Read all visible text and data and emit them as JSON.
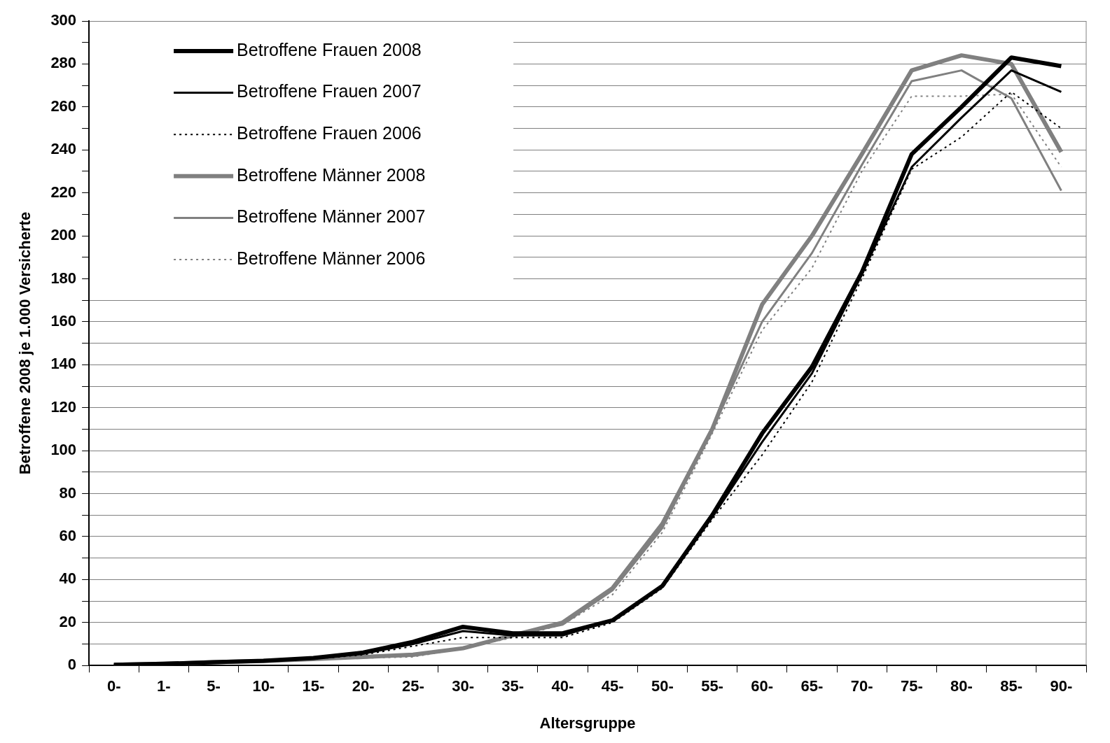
{
  "chart_data": {
    "type": "line",
    "xlabel": "Altersgruppe",
    "ylabel": "Betroffene 2008 je 1.000 Versicherte",
    "categories": [
      "0-",
      "1-",
      "5-",
      "10-",
      "15-",
      "20-",
      "25-",
      "30-",
      "35-",
      "40-",
      "45-",
      "50-",
      "55-",
      "60-",
      "65-",
      "70-",
      "75-",
      "80-",
      "85-",
      "90-"
    ],
    "ylim": [
      0,
      300
    ],
    "yticks": [
      0,
      {
        "value": 10,
        "label": null
      },
      20,
      {
        "value": 30,
        "label": null
      },
      40,
      {
        "value": 50,
        "label": null
      },
      60,
      {
        "value": 70,
        "label": null
      },
      80,
      {
        "value": 90,
        "label": null
      },
      100,
      {
        "value": 110,
        "label": null
      },
      120,
      {
        "value": 130,
        "label": null
      },
      140,
      {
        "value": 150,
        "label": null
      },
      160,
      {
        "value": 170,
        "label": null
      },
      180,
      {
        "value": 190,
        "label": null
      },
      200,
      {
        "value": 210,
        "label": null
      },
      220,
      {
        "value": 230,
        "label": null
      },
      240,
      {
        "value": 250,
        "label": null
      },
      260,
      {
        "value": 270,
        "label": null
      },
      280,
      {
        "value": 290,
        "label": null
      },
      300
    ],
    "grid": "y",
    "legend": "top left",
    "marker": "none",
    "series": [
      {
        "name": "Betroffene Frauen 2008",
        "color": "#000000",
        "line_style": "solid",
        "values": [
          0.3,
          0.8,
          1.5,
          2.2,
          3.5,
          6,
          11,
          18,
          15,
          15,
          21,
          37,
          70,
          108,
          139,
          183,
          238,
          260,
          283,
          279
        ]
      },
      {
        "name": "Betroffene Frauen 2007",
        "color": "#000000",
        "line_style": "solid",
        "values": [
          0.3,
          0.8,
          1.4,
          2,
          3.2,
          5.5,
          10,
          16,
          14,
          14,
          21,
          37,
          69,
          104,
          136,
          182,
          232,
          255,
          277,
          267
        ]
      },
      {
        "name": "Betroffene Frauen 2006",
        "color": "#000000",
        "line_style": "dotted",
        "values": [
          0.3,
          0.7,
          1.3,
          2,
          3,
          5,
          9,
          13,
          13,
          13,
          20,
          36,
          68,
          98,
          132,
          180,
          231,
          246,
          267,
          250
        ]
      },
      {
        "name": "Betroffene Männer 2008",
        "color": "#808080",
        "line_style": "solid",
        "values": [
          0.3,
          0.8,
          1.5,
          2.1,
          3,
          4,
          5,
          8,
          14,
          20,
          36,
          66,
          110,
          168,
          200,
          238,
          277,
          284,
          280,
          239
        ]
      },
      {
        "name": "Betroffene Männer 2007",
        "color": "#808080",
        "line_style": "solid",
        "values": [
          0.3,
          0.8,
          1.4,
          2,
          3,
          4,
          4.5,
          8,
          14,
          19,
          35,
          64,
          110,
          160,
          192,
          233,
          272,
          277,
          264,
          221
        ]
      },
      {
        "name": "Betroffene Männer 2006",
        "color": "#808080",
        "line_style": "dotted",
        "values": [
          0.3,
          0.7,
          1.3,
          2,
          2.8,
          3.5,
          4,
          8,
          13,
          19,
          33,
          62,
          108,
          156,
          185,
          230,
          265,
          265,
          266,
          232
        ]
      }
    ]
  }
}
